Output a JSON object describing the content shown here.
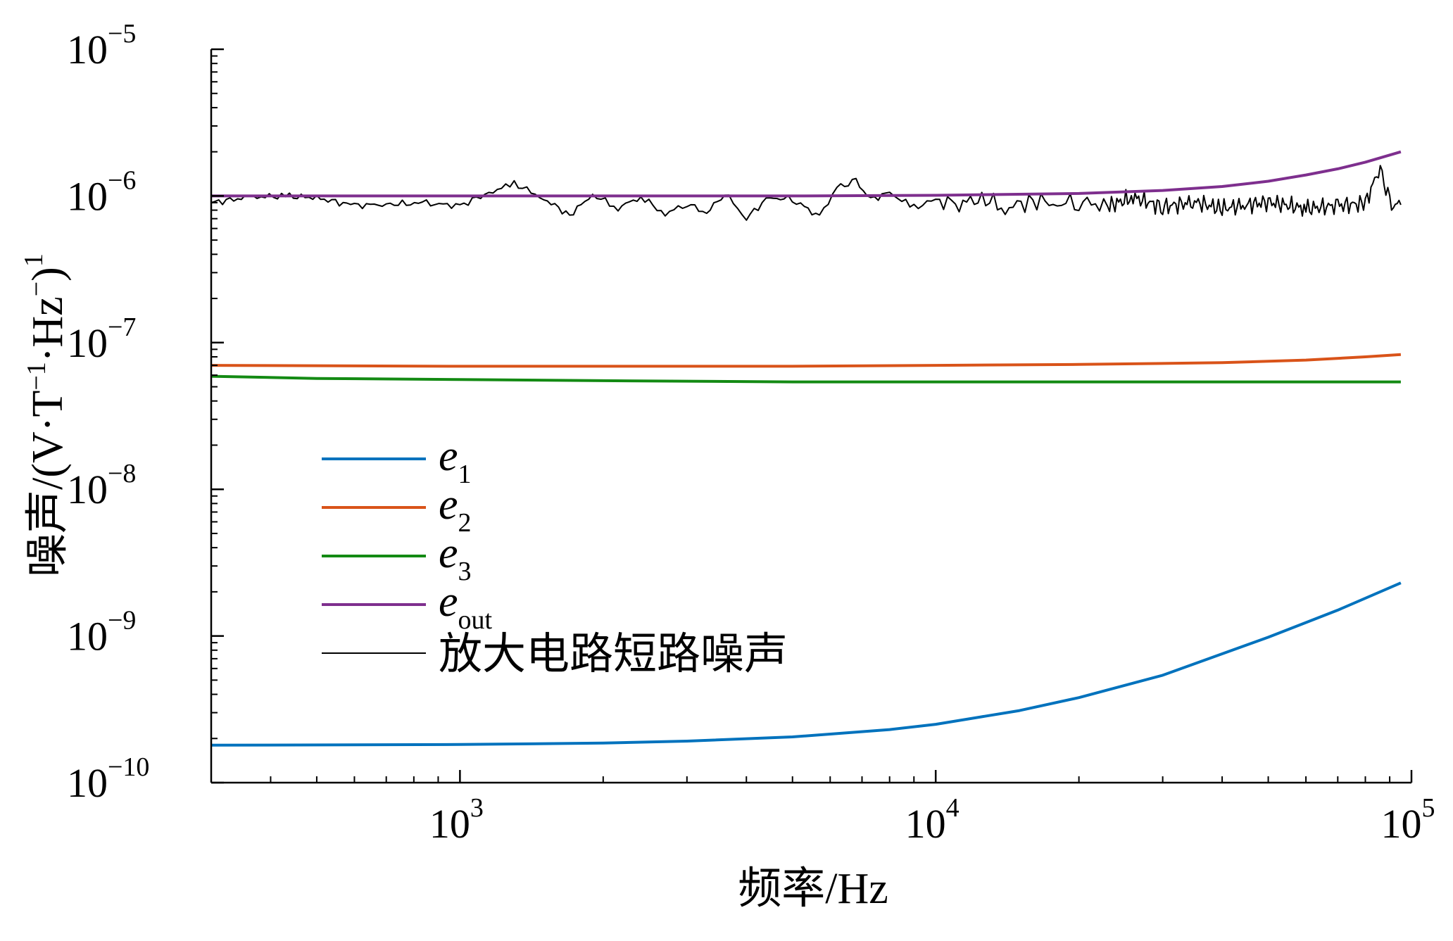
{
  "chart_data": {
    "type": "line",
    "x_scale": "log",
    "y_scale": "log",
    "xlim": [
      300,
      100000
    ],
    "ylim": [
      1e-10,
      1e-05
    ],
    "xlabel": {
      "main": "频率/Hz"
    },
    "ylabel": {
      "prefix": "噪声/(V·T",
      "sup1": "−1",
      "mid": "·Hz",
      "sup2": "−",
      "close": ")",
      "sup3": "1"
    },
    "x_ticks": [
      {
        "value": 1000,
        "base": "10",
        "exp": "3"
      },
      {
        "value": 10000,
        "base": "10",
        "exp": "4"
      },
      {
        "value": 100000,
        "base": "10",
        "exp": "5"
      }
    ],
    "y_ticks": [
      {
        "value": 1e-05,
        "base": "10",
        "exp": "−5"
      },
      {
        "value": 1e-06,
        "base": "10",
        "exp": "−6"
      },
      {
        "value": 1e-07,
        "base": "10",
        "exp": "−7"
      },
      {
        "value": 1e-08,
        "base": "10",
        "exp": "−8"
      },
      {
        "value": 1e-09,
        "base": "10",
        "exp": "−9"
      },
      {
        "value": 1e-10,
        "base": "10",
        "exp": "−10"
      }
    ],
    "legend_position": "lower-left",
    "series": [
      {
        "name": "e1",
        "label_main": "e",
        "label_sub": "1",
        "color": "#0072BD",
        "width": 4,
        "x": [
          300,
          1000,
          2000,
          3000,
          5000,
          8000,
          10000,
          15000,
          20000,
          30000,
          50000,
          70000,
          95000
        ],
        "y": [
          1.8e-10,
          1.82e-10,
          1.86e-10,
          1.92e-10,
          2.05e-10,
          2.3e-10,
          2.5e-10,
          3.1e-10,
          3.8e-10,
          5.4e-10,
          9.8e-10,
          1.5e-09,
          2.3e-09
        ]
      },
      {
        "name": "e2",
        "label_main": "e",
        "label_sub": "2",
        "color": "#D95319",
        "width": 4,
        "x": [
          300,
          1000,
          5000,
          10000,
          20000,
          40000,
          60000,
          80000,
          95000
        ],
        "y": [
          7e-08,
          6.9e-08,
          6.9e-08,
          7e-08,
          7.1e-08,
          7.3e-08,
          7.6e-08,
          8e-08,
          8.3e-08
        ]
      },
      {
        "name": "e3",
        "label_main": "e",
        "label_sub": "3",
        "color": "#138A13",
        "width": 4,
        "x": [
          300,
          500,
          1000,
          2000,
          5000,
          10000,
          50000,
          95000
        ],
        "y": [
          5.9e-08,
          5.7e-08,
          5.6e-08,
          5.5e-08,
          5.4e-08,
          5.4e-08,
          5.4e-08,
          5.4e-08
        ]
      },
      {
        "name": "eout",
        "label_main": "e",
        "label_sub": "out",
        "color": "#7E2F8E",
        "width": 4,
        "x": [
          300,
          1000,
          5000,
          10000,
          20000,
          30000,
          40000,
          50000,
          60000,
          70000,
          80000,
          95000
        ],
        "y": [
          1e-06,
          1e-06,
          1e-06,
          1.01e-06,
          1.04e-06,
          1.09e-06,
          1.16e-06,
          1.26e-06,
          1.39e-06,
          1.53e-06,
          1.7e-06,
          2e-06
        ]
      },
      {
        "name": "放大电路短路噪声",
        "label_main": "放大电路短路噪声",
        "label_sub": "",
        "color": "#000000",
        "width": 2,
        "noisy": true,
        "x": [
          300,
          360,
          430,
          500,
          600,
          700,
          850,
          1000,
          1150,
          1300,
          1500,
          1700,
          1900,
          2150,
          2400,
          2700,
          3000,
          3300,
          3600,
          4000,
          4400,
          4800,
          5200,
          5700,
          6200,
          6800,
          7300,
          8000,
          9000,
          10000,
          11000,
          12500,
          14000,
          16000,
          18000,
          20000,
          23000,
          26000,
          30000,
          35000,
          40000,
          45000,
          50000,
          60000,
          70000,
          80000,
          86000,
          90000,
          95000
        ],
        "y": [
          9e-07,
          9.8e-07,
          1e-06,
          9.7e-07,
          8.6e-07,
          8.8e-07,
          8.9e-07,
          8.6e-07,
          1.05e-06,
          1.22e-06,
          9.6e-07,
          7.4e-07,
          1.02e-06,
          8.3e-07,
          9.9e-07,
          7.5e-07,
          8.9e-07,
          7.6e-07,
          1.05e-06,
          7e-07,
          9.5e-07,
          9.8e-07,
          8.8e-07,
          7.2e-07,
          1.15e-06,
          1.25e-06,
          9.5e-07,
          1.05e-06,
          8.3e-07,
          9.5e-07,
          8.6e-07,
          9.8e-07,
          8.2e-07,
          9.4e-07,
          8.8e-07,
          9.2e-07,
          8.5e-07,
          9.8e-07,
          8.4e-07,
          9.1e-07,
          8.2e-07,
          8.7e-07,
          9.1e-07,
          8.2e-07,
          8.6e-07,
          8.9e-07,
          1.6e-06,
          8.6e-07,
          8.7e-07
        ]
      }
    ]
  }
}
